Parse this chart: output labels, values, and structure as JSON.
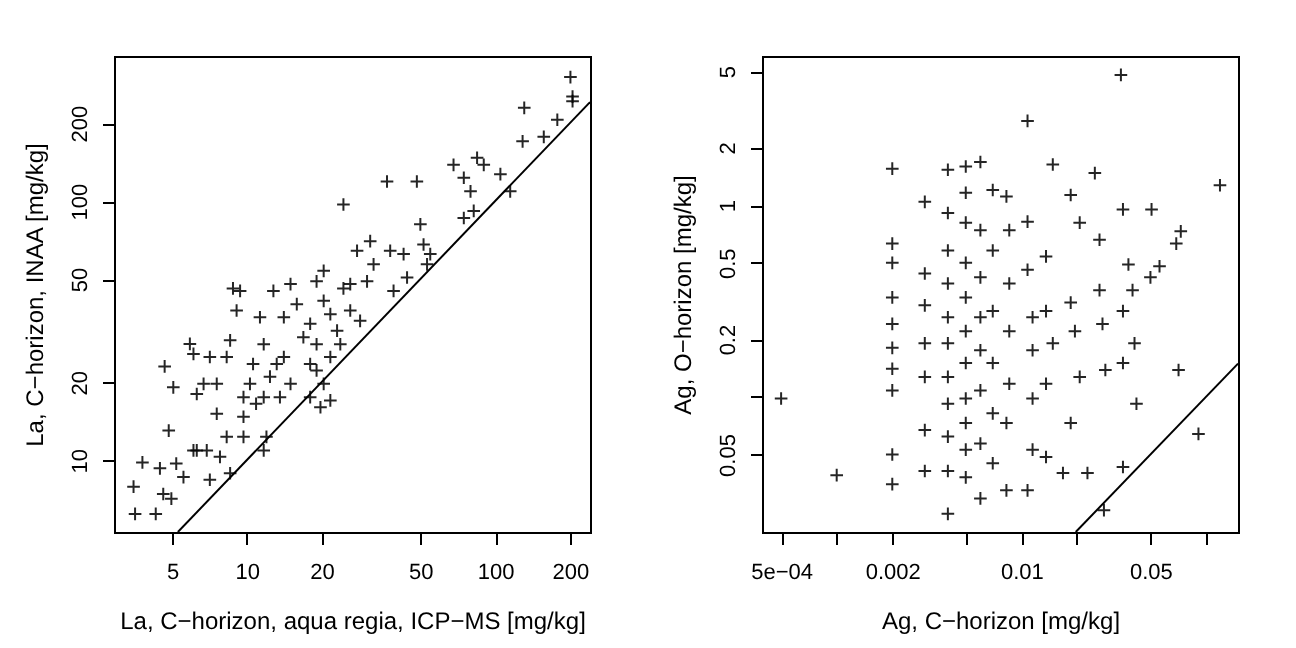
{
  "chart_data": [
    {
      "type": "scatter",
      "xlabel": "La, C−horizon, aqua regia, ICP−MS [mg/kg]",
      "ylabel": "La, C−horizon, INAA [mg/kg]",
      "log": "xy",
      "xlim": [
        2.92,
        241
      ],
      "ylim": [
        5.28,
        363
      ],
      "xticks": [
        5,
        10,
        20,
        50,
        100,
        200
      ],
      "yticks": [
        10,
        20,
        50,
        100,
        200
      ],
      "series": [
        {
          "marker": "cross",
          "color": "#000000",
          "x": [
            3.5,
            3.55,
            4.3,
            3.8,
            4.47,
            4.61,
            4.97,
            5.56,
            4.67,
            5.06,
            4.85,
            5.9,
            6.1,
            6.29,
            6.29,
            6.9,
            7.1,
            7.57,
            7.8,
            8.57,
            8.3,
            7.1,
            8.3,
            8.57,
            9.1,
            9.4,
            8.8,
            9.7,
            9.7,
            10.3,
            10.6,
            11.7,
            11.3,
            12,
            11.7,
            10.9,
            12.4,
            13.2,
            14.1,
            12.8,
            15,
            14.1,
            15.9,
            16.9,
            18,
            18,
            15,
            13.6,
            19.1,
            20.4,
            19.1,
            20.4,
            21.7,
            23.1,
            21.7,
            23.8,
            20.4,
            18,
            21.7,
            19.8,
            19.1,
            26.1,
            26.1,
            28.6,
            24.5,
            30.5,
            27.8,
            31.4,
            32.4,
            37.8,
            39,
            42.8,
            44.2,
            36.7,
            48.4,
            24.5,
            50,
            51.5,
            54.8,
            53.2,
            68,
            74.8,
            79.6,
            74.8,
            82,
            84.6,
            90,
            105,
            115,
            131,
            129,
            157,
            178,
            201,
            205,
            205,
            11.7,
            9.7,
            7.57,
            6.7,
            6.1,
            5.2
          ],
          "values": [
            7.9,
            6.2,
            6.2,
            9.8,
            9.3,
            7.4,
            7.1,
            8.6,
            23,
            19.1,
            13,
            28.1,
            25.7,
            18,
            10.9,
            10.9,
            8.4,
            15.1,
            10.3,
            8.9,
            12.3,
            25,
            25,
            29,
            37.8,
            45,
            46,
            17.5,
            14.7,
            19.7,
            23.5,
            28,
            35.6,
            12.3,
            10.9,
            16.5,
            21,
            23.5,
            25,
            45,
            47.8,
            35.6,
            40,
            29.8,
            33.6,
            23.5,
            19.7,
            17.5,
            28,
            53.8,
            49,
            41.2,
            36.6,
            31.6,
            25,
            28,
            19.7,
            17.5,
            17,
            16,
            22.2,
            37.8,
            47.8,
            34.5,
            46,
            49,
            64.3,
            70,
            57,
            64.3,
            45,
            62.4,
            50.7,
            119,
            119,
            97,
            81.3,
            68,
            62.4,
            57,
            138,
            123,
            109,
            86,
            91.6,
            147,
            138,
            127,
            109,
            229,
            170,
            177,
            206,
            301,
            253,
            243,
            17.5,
            12.3,
            19.7,
            19.7,
            10.9,
            9.7
          ]
        },
        {
          "type": "line",
          "color": "#000000",
          "x": [
            5.28,
            241
          ],
          "values": [
            5.28,
            241
          ]
        }
      ]
    },
    {
      "type": "scatter",
      "xlabel": "Ag, C−horizon [mg/kg]",
      "ylabel": "Ag, O−horizon [mg/kg]",
      "log": "xy",
      "xlim": [
        0.000394,
        0.149
      ],
      "ylim": [
        0.0197,
        6
      ],
      "xticks": [
        {
          "value": 0.0005,
          "label": "5e−04"
        },
        {
          "value": 0.001,
          "label": null
        },
        0.002,
        {
          "value": 0.005,
          "label": null
        },
        0.01,
        {
          "value": 0.02,
          "label": null
        },
        0.05,
        {
          "value": 0.1,
          "label": null
        }
      ],
      "yticks": [
        0.05,
        {
          "value": 0.1,
          "label": null
        },
        0.2,
        0.5,
        1,
        2,
        5
      ],
      "series": [
        {
          "marker": "cross",
          "color": "#000000",
          "x": [
            0.0005,
            0.001,
            0.002,
            0.002,
            0.002,
            0.002,
            0.002,
            0.002,
            0.002,
            0.002,
            0.002,
            0.002,
            0.003,
            0.003,
            0.003,
            0.003,
            0.003,
            0.003,
            0.003,
            0.004,
            0.004,
            0.004,
            0.004,
            0.004,
            0.004,
            0.004,
            0.004,
            0.004,
            0.004,
            0.004,
            0.005,
            0.005,
            0.005,
            0.005,
            0.005,
            0.005,
            0.005,
            0.005,
            0.005,
            0.005,
            0.005,
            0.006,
            0.006,
            0.006,
            0.006,
            0.006,
            0.006,
            0.006,
            0.006,
            0.007,
            0.007,
            0.007,
            0.007,
            0.007,
            0.007,
            0.0083,
            0.0086,
            0.0086,
            0.0086,
            0.0086,
            0.0083,
            0.0083,
            0.0108,
            0.0108,
            0.0108,
            0.0115,
            0.0115,
            0.0115,
            0.0115,
            0.0108,
            0.0148,
            0.0136,
            0.0136,
            0.0148,
            0.0136,
            0.0136,
            0.0168,
            0.0185,
            0.0207,
            0.0185,
            0.0195,
            0.0207,
            0.0185,
            0.0228,
            0.025,
            0.0265,
            0.0265,
            0.0275,
            0.0285,
            0.028,
            0.0346,
            0.0355,
            0.0355,
            0.0355,
            0.0355,
            0.04,
            0.041,
            0.042,
            0.0507,
            0.05,
            0.056,
            0.069,
            0.073,
            0.071,
            0.091,
            0.119,
            0.038
          ],
          "values": [
            0.098,
            0.039,
            1.55,
            0.63,
            0.5,
            0.33,
            0.24,
            0.18,
            0.14,
            0.108,
            0.05,
            0.035,
            1.04,
            0.44,
            0.3,
            0.19,
            0.127,
            0.067,
            0.041,
            1.53,
            0.91,
            0.58,
            0.39,
            0.26,
            0.19,
            0.127,
            0.092,
            0.062,
            0.041,
            0.0245,
            1.59,
            1.16,
            0.81,
            0.5,
            0.33,
            0.22,
            0.15,
            0.098,
            0.073,
            0.053,
            0.038,
            1.68,
            0.74,
            0.42,
            0.26,
            0.175,
            0.108,
            0.057,
            0.0295,
            1.2,
            0.58,
            0.28,
            0.15,
            0.082,
            0.045,
            1.11,
            0.74,
            0.39,
            0.22,
            0.117,
            0.073,
            0.0325,
            2.75,
            0.82,
            0.46,
            0.26,
            0.175,
            0.098,
            0.053,
            0.0325,
            1.63,
            0.54,
            0.28,
            0.19,
            0.117,
            0.0485,
            0.04,
            1.13,
            0.81,
            0.31,
            0.22,
            0.127,
            0.073,
            0.04,
            1.47,
            0.66,
            0.36,
            0.24,
            0.138,
            0.0256,
            4.78,
            0.95,
            0.28,
            0.15,
            0.043,
            0.36,
            0.19,
            0.092,
            0.95,
            0.42,
            0.48,
            0.63,
            0.73,
            0.138,
            0.064,
            1.27,
            0.49
          ]
        },
        {
          "type": "line",
          "color": "#000000",
          "x": [
            0.0197,
            0.149
          ],
          "values": [
            0.0197,
            0.149
          ]
        }
      ]
    }
  ]
}
